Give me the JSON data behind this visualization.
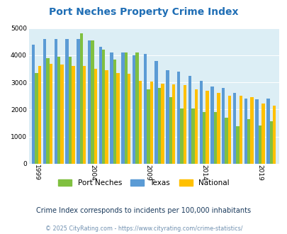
{
  "title": "Port Neches Property Crime Index",
  "years": [
    1999,
    2000,
    2001,
    2002,
    2003,
    2004,
    2005,
    2006,
    2007,
    2008,
    2009,
    2010,
    2011,
    2012,
    2013,
    2014,
    2015,
    2016,
    2017,
    2018,
    2019,
    2020,
    2021
  ],
  "port_neches": [
    3350,
    3900,
    3950,
    3950,
    4800,
    4550,
    4200,
    3850,
    4100,
    4100,
    2750,
    2800,
    2450,
    2050,
    2050,
    1900,
    1900,
    1700,
    1380,
    1650,
    1400,
    1570,
    null
  ],
  "texas": [
    4400,
    4600,
    4600,
    4600,
    4600,
    4550,
    4300,
    4100,
    4100,
    4000,
    4050,
    3800,
    3450,
    3400,
    3250,
    3050,
    2850,
    2800,
    2600,
    2400,
    2380,
    2400,
    null
  ],
  "national": [
    3600,
    3680,
    3650,
    3600,
    3600,
    3500,
    3450,
    3350,
    3320,
    3050,
    3020,
    2950,
    2920,
    2900,
    2750,
    2700,
    2620,
    2500,
    2500,
    2450,
    2220,
    2130,
    null
  ],
  "bar_colors": {
    "port_neches": "#80c040",
    "texas": "#5b9bd5",
    "national": "#ffc000"
  },
  "background_color": "#dceef5",
  "ylim": [
    0,
    5000
  ],
  "yticks": [
    0,
    1000,
    2000,
    3000,
    4000,
    5000
  ],
  "xtick_years": [
    1999,
    2004,
    2009,
    2014,
    2019
  ],
  "legend_labels": [
    "Port Neches",
    "Texas",
    "National"
  ],
  "subtitle": "Crime Index corresponds to incidents per 100,000 inhabitants",
  "footer": "© 2025 CityRating.com - https://www.cityrating.com/crime-statistics/",
  "title_color": "#1f6eb5",
  "subtitle_color": "#1a3a5c",
  "footer_color": "#7090b0"
}
